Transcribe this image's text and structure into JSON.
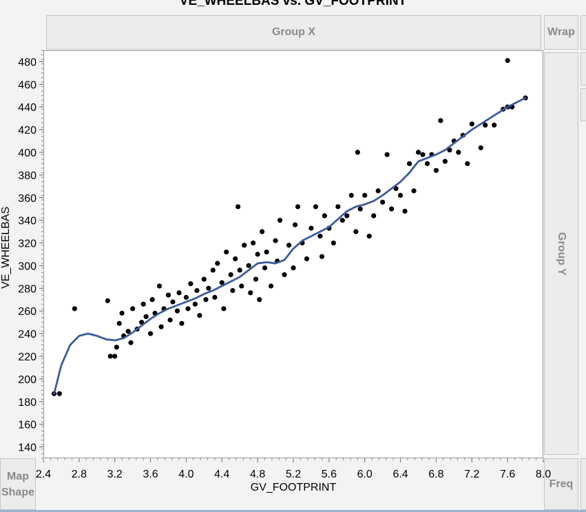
{
  "chart_data": {
    "type": "scatter",
    "title": "VE_WHEELBAS vs. GV_FOOTPRINT",
    "xlabel": "GV_FOOTPRINT",
    "ylabel": "VE_WHEELBAS",
    "xlim": [
      2.4,
      8.0
    ],
    "ylim": [
      130,
      490
    ],
    "xticks": [
      "2.4",
      "2.8",
      "3.2",
      "3.6",
      "4.0",
      "4.4",
      "4.8",
      "5.2",
      "5.6",
      "6.0",
      "6.4",
      "6.8",
      "7.2",
      "7.6",
      "8.0"
    ],
    "yticks": [
      "140",
      "160",
      "180",
      "200",
      "220",
      "240",
      "260",
      "280",
      "300",
      "320",
      "340",
      "360",
      "380",
      "400",
      "420",
      "440",
      "460",
      "480"
    ],
    "grid": false,
    "marker_color": "#000000",
    "smoother_color": "#3a5ba0",
    "points": [
      [
        2.52,
        187
      ],
      [
        2.58,
        187
      ],
      [
        2.75,
        262
      ],
      [
        3.12,
        269
      ],
      [
        3.15,
        220
      ],
      [
        3.2,
        220
      ],
      [
        3.22,
        228
      ],
      [
        3.25,
        249
      ],
      [
        3.28,
        258
      ],
      [
        3.3,
        238
      ],
      [
        3.35,
        242
      ],
      [
        3.38,
        232
      ],
      [
        3.4,
        262
      ],
      [
        3.45,
        244
      ],
      [
        3.5,
        250
      ],
      [
        3.52,
        266
      ],
      [
        3.55,
        255
      ],
      [
        3.6,
        240
      ],
      [
        3.62,
        270
      ],
      [
        3.65,
        258
      ],
      [
        3.7,
        282
      ],
      [
        3.72,
        246
      ],
      [
        3.75,
        262
      ],
      [
        3.8,
        274
      ],
      [
        3.82,
        252
      ],
      [
        3.85,
        268
      ],
      [
        3.9,
        260
      ],
      [
        3.92,
        276
      ],
      [
        3.95,
        249
      ],
      [
        4.0,
        272
      ],
      [
        4.02,
        262
      ],
      [
        4.05,
        284
      ],
      [
        4.1,
        266
      ],
      [
        4.12,
        278
      ],
      [
        4.15,
        256
      ],
      [
        4.2,
        288
      ],
      [
        4.22,
        270
      ],
      [
        4.25,
        280
      ],
      [
        4.3,
        296
      ],
      [
        4.32,
        272
      ],
      [
        4.35,
        302
      ],
      [
        4.4,
        285
      ],
      [
        4.42,
        262
      ],
      [
        4.45,
        312
      ],
      [
        4.5,
        292
      ],
      [
        4.52,
        278
      ],
      [
        4.55,
        306
      ],
      [
        4.58,
        352
      ],
      [
        4.6,
        296
      ],
      [
        4.62,
        282
      ],
      [
        4.65,
        318
      ],
      [
        4.7,
        300
      ],
      [
        4.72,
        276
      ],
      [
        4.75,
        320
      ],
      [
        4.78,
        288
      ],
      [
        4.8,
        310
      ],
      [
        4.82,
        270
      ],
      [
        4.85,
        330
      ],
      [
        4.88,
        298
      ],
      [
        4.9,
        312
      ],
      [
        4.95,
        282
      ],
      [
        5.0,
        322
      ],
      [
        5.02,
        304
      ],
      [
        5.05,
        340
      ],
      [
        5.1,
        292
      ],
      [
        5.15,
        318
      ],
      [
        5.2,
        298
      ],
      [
        5.22,
        336
      ],
      [
        5.25,
        352
      ],
      [
        5.3,
        320
      ],
      [
        5.35,
        306
      ],
      [
        5.4,
        333
      ],
      [
        5.45,
        352
      ],
      [
        5.5,
        326
      ],
      [
        5.52,
        308
      ],
      [
        5.55,
        344
      ],
      [
        5.6,
        333
      ],
      [
        5.65,
        320
      ],
      [
        5.7,
        352
      ],
      [
        5.75,
        340
      ],
      [
        5.8,
        344
      ],
      [
        5.85,
        362
      ],
      [
        5.9,
        330
      ],
      [
        5.92,
        400
      ],
      [
        5.95,
        350
      ],
      [
        6.0,
        362
      ],
      [
        6.05,
        326
      ],
      [
        6.1,
        344
      ],
      [
        6.15,
        366
      ],
      [
        6.2,
        356
      ],
      [
        6.25,
        398
      ],
      [
        6.3,
        350
      ],
      [
        6.35,
        368
      ],
      [
        6.4,
        362
      ],
      [
        6.45,
        348
      ],
      [
        6.5,
        390
      ],
      [
        6.55,
        366
      ],
      [
        6.6,
        400
      ],
      [
        6.65,
        398
      ],
      [
        6.7,
        390
      ],
      [
        6.75,
        398
      ],
      [
        6.8,
        384
      ],
      [
        6.85,
        428
      ],
      [
        6.9,
        392
      ],
      [
        6.95,
        402
      ],
      [
        7.0,
        410
      ],
      [
        7.05,
        400
      ],
      [
        7.1,
        415
      ],
      [
        7.15,
        390
      ],
      [
        7.2,
        425
      ],
      [
        7.3,
        404
      ],
      [
        7.35,
        424
      ],
      [
        7.45,
        424
      ],
      [
        7.55,
        438
      ],
      [
        7.6,
        440
      ],
      [
        7.65,
        440
      ],
      [
        7.6,
        481
      ],
      [
        7.8,
        448
      ]
    ],
    "smoother": [
      [
        2.52,
        187
      ],
      [
        2.6,
        212
      ],
      [
        2.7,
        230
      ],
      [
        2.8,
        238
      ],
      [
        2.9,
        240
      ],
      [
        3.0,
        238
      ],
      [
        3.1,
        235
      ],
      [
        3.2,
        234
      ],
      [
        3.3,
        236
      ],
      [
        3.4,
        241
      ],
      [
        3.5,
        247
      ],
      [
        3.6,
        253
      ],
      [
        3.7,
        258
      ],
      [
        3.8,
        262
      ],
      [
        3.9,
        265
      ],
      [
        4.0,
        268
      ],
      [
        4.1,
        271
      ],
      [
        4.2,
        275
      ],
      [
        4.3,
        278
      ],
      [
        4.4,
        282
      ],
      [
        4.5,
        286
      ],
      [
        4.6,
        290
      ],
      [
        4.7,
        296
      ],
      [
        4.8,
        302
      ],
      [
        4.9,
        303
      ],
      [
        5.0,
        302
      ],
      [
        5.1,
        305
      ],
      [
        5.2,
        315
      ],
      [
        5.3,
        322
      ],
      [
        5.4,
        326
      ],
      [
        5.5,
        330
      ],
      [
        5.6,
        334
      ],
      [
        5.7,
        341
      ],
      [
        5.8,
        348
      ],
      [
        5.9,
        352
      ],
      [
        6.0,
        354
      ],
      [
        6.1,
        357
      ],
      [
        6.2,
        362
      ],
      [
        6.3,
        368
      ],
      [
        6.4,
        374
      ],
      [
        6.5,
        382
      ],
      [
        6.6,
        392
      ],
      [
        6.7,
        395
      ],
      [
        6.8,
        398
      ],
      [
        6.9,
        402
      ],
      [
        7.0,
        408
      ],
      [
        7.1,
        414
      ],
      [
        7.2,
        420
      ],
      [
        7.3,
        425
      ],
      [
        7.4,
        430
      ],
      [
        7.5,
        435
      ],
      [
        7.6,
        440
      ],
      [
        7.7,
        444
      ],
      [
        7.8,
        448
      ]
    ]
  },
  "zones": {
    "group_x": "Group X",
    "group_y": "Group Y",
    "wrap": "Wrap",
    "map_shape_line1": "Map",
    "map_shape_line2": "Shape",
    "freq": "Freq"
  }
}
